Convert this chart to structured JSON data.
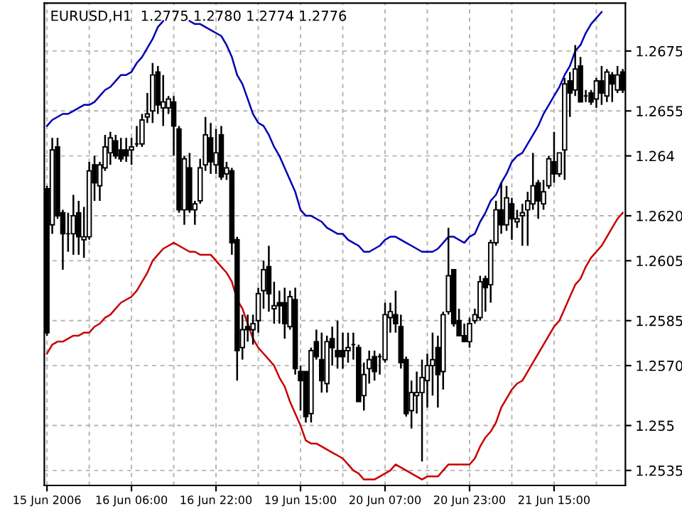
{
  "chart_data": {
    "type": "candlestick",
    "title": "EURUSD,H1  1.2775 1.2780 1.2774 1.2776",
    "categories": [
      "15 Jun 2006",
      null,
      null,
      null,
      null,
      null,
      null,
      null,
      null,
      null,
      null,
      null,
      null,
      null,
      null,
      null,
      "16 Jun 06:00",
      null,
      null,
      null,
      null,
      null,
      null,
      null,
      null,
      null,
      null,
      null,
      null,
      null,
      null,
      null,
      "16 Jun 22:00",
      null,
      null,
      null,
      null,
      null,
      null,
      null,
      null,
      null,
      null,
      null,
      null,
      null,
      null,
      null,
      "19 Jun 15:00",
      null,
      null,
      null,
      null,
      null,
      null,
      null,
      null,
      null,
      null,
      null,
      null,
      null,
      null,
      null,
      "20 Jun 07:00",
      null,
      null,
      null,
      null,
      null,
      null,
      null,
      null,
      null,
      null,
      null,
      null,
      null,
      null,
      null,
      "20 Jun 23:00",
      null,
      null,
      null,
      null,
      null,
      null,
      null,
      null,
      null,
      null,
      null,
      null,
      null,
      null,
      null,
      "21 Jun 15:00",
      null,
      null,
      null,
      null,
      null,
      null,
      null,
      null,
      null,
      null,
      null,
      null,
      null
    ],
    "ohlc": [
      [
        1.2629,
        1.263,
        1.258,
        1.2581
      ],
      [
        1.2617,
        1.2646,
        1.2614,
        1.2642
      ],
      [
        1.2643,
        1.2646,
        1.2619,
        1.262
      ],
      [
        1.2621,
        1.2622,
        1.2602,
        1.2614
      ],
      [
        1.2614,
        1.2621,
        1.2608,
        1.2614
      ],
      [
        1.2614,
        1.2627,
        1.2607,
        1.262
      ],
      [
        1.2621,
        1.2625,
        1.2607,
        1.2613
      ],
      [
        1.2612,
        1.2623,
        1.2606,
        1.2613
      ],
      [
        1.2613,
        1.2638,
        1.2612,
        1.2635
      ],
      [
        1.2637,
        1.264,
        1.2625,
        1.2631
      ],
      [
        1.263,
        1.2638,
        1.2625,
        1.2637
      ],
      [
        1.2636,
        1.2647,
        1.2635,
        1.2643
      ],
      [
        1.2641,
        1.2648,
        1.2637,
        1.2646
      ],
      [
        1.2645,
        1.2647,
        1.2639,
        1.264
      ],
      [
        1.2642,
        1.2646,
        1.2638,
        1.2639
      ],
      [
        1.2642,
        1.2646,
        1.2638,
        1.264
      ],
      [
        1.2642,
        1.2646,
        1.2637,
        1.2643
      ],
      [
        1.2644,
        1.265,
        1.2643,
        1.2644
      ],
      [
        1.2644,
        1.2654,
        1.2643,
        1.2652
      ],
      [
        1.2653,
        1.2661,
        1.2651,
        1.2654
      ],
      [
        1.2655,
        1.2671,
        1.2651,
        1.2667
      ],
      [
        1.2668,
        1.267,
        1.2654,
        1.2657
      ],
      [
        1.2656,
        1.2667,
        1.265,
        1.2658
      ],
      [
        1.2656,
        1.266,
        1.2654,
        1.2659
      ],
      [
        1.2658,
        1.266,
        1.264,
        1.265
      ],
      [
        1.2649,
        1.265,
        1.2621,
        1.2622
      ],
      [
        1.2622,
        1.264,
        1.2617,
        1.2639
      ],
      [
        1.2636,
        1.2641,
        1.2621,
        1.2622
      ],
      [
        1.2622,
        1.2625,
        1.2617,
        1.2624
      ],
      [
        1.2625,
        1.2639,
        1.2624,
        1.2636
      ],
      [
        1.2637,
        1.2653,
        1.2635,
        1.2647
      ],
      [
        1.2646,
        1.2651,
        1.2634,
        1.2638
      ],
      [
        1.2637,
        1.2649,
        1.2634,
        1.2641
      ],
      [
        1.2647,
        1.265,
        1.2632,
        1.2633
      ],
      [
        1.2634,
        1.2638,
        1.2632,
        1.2636
      ],
      [
        1.2635,
        1.2636,
        1.2607,
        1.2611
      ],
      [
        1.2612,
        1.2613,
        1.2565,
        1.2575
      ],
      [
        1.2576,
        1.2587,
        1.2572,
        1.2582
      ],
      [
        1.2583,
        1.2587,
        1.2578,
        1.2582
      ],
      [
        1.2582,
        1.2587,
        1.2577,
        1.2584
      ],
      [
        1.2585,
        1.2596,
        1.2581,
        1.2594
      ],
      [
        1.2595,
        1.2605,
        1.2589,
        1.2602
      ],
      [
        1.2603,
        1.261,
        1.2588,
        1.2594
      ],
      [
        1.2589,
        1.2598,
        1.2584,
        1.259
      ],
      [
        1.2591,
        1.2595,
        1.2584,
        1.259
      ],
      [
        1.2591,
        1.2596,
        1.2579,
        1.2584
      ],
      [
        1.2583,
        1.2595,
        1.2582,
        1.2593
      ],
      [
        1.2592,
        1.2596,
        1.2567,
        1.2569
      ],
      [
        1.2568,
        1.257,
        1.2555,
        1.2565
      ],
      [
        1.2568,
        1.2568,
        1.2551,
        1.2553
      ],
      [
        1.2554,
        1.2576,
        1.2551,
        1.2575
      ],
      [
        1.2578,
        1.2582,
        1.2572,
        1.2573
      ],
      [
        1.2572,
        1.2581,
        1.2561,
        1.2565
      ],
      [
        1.2564,
        1.258,
        1.2561,
        1.2578
      ],
      [
        1.2579,
        1.2583,
        1.257,
        1.2576
      ],
      [
        1.2575,
        1.2585,
        1.2569,
        1.2573
      ],
      [
        1.2575,
        1.2581,
        1.2569,
        1.2573
      ],
      [
        1.2575,
        1.2581,
        1.2571,
        1.2576
      ],
      [
        1.2577,
        1.2581,
        1.2572,
        1.2577
      ],
      [
        1.2576,
        1.2577,
        1.2558,
        1.2558
      ],
      [
        1.256,
        1.2571,
        1.2555,
        1.2567
      ],
      [
        1.2569,
        1.2575,
        1.2564,
        1.2572
      ],
      [
        1.2573,
        1.2575,
        1.2565,
        1.2568
      ],
      [
        1.2573,
        1.2574,
        1.2567,
        1.2573
      ],
      [
        1.2572,
        1.2591,
        1.2571,
        1.2587
      ],
      [
        1.2586,
        1.2591,
        1.2581,
        1.2588
      ],
      [
        1.2587,
        1.2595,
        1.2581,
        1.2584
      ],
      [
        1.2583,
        1.2587,
        1.2569,
        1.2571
      ],
      [
        1.2572,
        1.2573,
        1.2553,
        1.2554
      ],
      [
        1.2555,
        1.2565,
        1.2549,
        1.2561
      ],
      [
        1.256,
        1.2568,
        1.2554,
        1.2561
      ],
      [
        1.2561,
        1.2572,
        1.2538,
        1.2566
      ],
      [
        1.2565,
        1.2574,
        1.2556,
        1.257
      ],
      [
        1.257,
        1.2581,
        1.256,
        1.2572
      ],
      [
        1.2576,
        1.258,
        1.2556,
        1.2567
      ],
      [
        1.2568,
        1.2588,
        1.2562,
        1.2587
      ],
      [
        1.2588,
        1.2616,
        1.2587,
        1.26
      ],
      [
        1.2602,
        1.2602,
        1.2583,
        1.2584
      ],
      [
        1.2585,
        1.2589,
        1.258,
        1.258
      ],
      [
        1.258,
        1.2584,
        1.2578,
        1.2578
      ],
      [
        1.2578,
        1.2586,
        1.2576,
        1.2584
      ],
      [
        1.2585,
        1.2589,
        1.2584,
        1.2587
      ],
      [
        1.2586,
        1.26,
        1.2585,
        1.2598
      ],
      [
        1.2599,
        1.26,
        1.2588,
        1.2596
      ],
      [
        1.2597,
        1.2612,
        1.2591,
        1.2611
      ],
      [
        1.2611,
        1.2625,
        1.261,
        1.2622
      ],
      [
        1.2622,
        1.2631,
        1.2614,
        1.2617
      ],
      [
        1.2617,
        1.263,
        1.2615,
        1.2626
      ],
      [
        1.2624,
        1.2626,
        1.2612,
        1.2619
      ],
      [
        1.2618,
        1.2622,
        1.2616,
        1.2619
      ],
      [
        1.262,
        1.2624,
        1.261,
        1.2621
      ],
      [
        1.2622,
        1.2628,
        1.261,
        1.2625
      ],
      [
        1.2624,
        1.2641,
        1.2622,
        1.263
      ],
      [
        1.2631,
        1.2632,
        1.2619,
        1.2625
      ],
      [
        1.2624,
        1.2632,
        1.2622,
        1.2628
      ],
      [
        1.263,
        1.264,
        1.2629,
        1.2639
      ],
      [
        1.2638,
        1.2648,
        1.2631,
        1.2634
      ],
      [
        1.2634,
        1.2641,
        1.2633,
        1.2641
      ],
      [
        1.2642,
        1.2666,
        1.2632,
        1.2664
      ],
      [
        1.2665,
        1.2668,
        1.2653,
        1.2661
      ],
      [
        1.2662,
        1.2677,
        1.266,
        1.2669
      ],
      [
        1.267,
        1.2673,
        1.2658,
        1.2658
      ],
      [
        1.266,
        1.2662,
        1.2658,
        1.266
      ],
      [
        1.2661,
        1.2662,
        1.2657,
        1.2658
      ],
      [
        1.2659,
        1.2666,
        1.2656,
        1.2665
      ],
      [
        1.2665,
        1.267,
        1.2657,
        1.2661
      ],
      [
        1.266,
        1.2669,
        1.2658,
        1.2668
      ],
      [
        1.2667,
        1.2668,
        1.2658,
        1.2664
      ],
      [
        1.2662,
        1.267,
        1.2661,
        1.2667
      ],
      [
        1.2668,
        1.2669,
        1.2661,
        1.2662
      ]
    ],
    "series": [
      {
        "type": "line",
        "color": "#0000b4",
        "values": [
          1.265,
          1.2652,
          1.2653,
          1.2654,
          1.2654,
          1.2655,
          1.2656,
          1.2657,
          1.2657,
          1.2658,
          1.266,
          1.2662,
          1.2663,
          1.2665,
          1.2667,
          1.2667,
          1.2668,
          1.2671,
          1.2673,
          1.2676,
          1.2679,
          1.2683,
          1.2685,
          null,
          null,
          null,
          null,
          1.2685,
          1.2684,
          1.2684,
          1.2683,
          1.2682,
          1.2681,
          1.268,
          1.2677,
          1.2673,
          1.2667,
          1.2664,
          1.2659,
          1.2654,
          1.2651,
          1.265,
          1.2647,
          1.2643,
          1.264,
          1.2636,
          1.2632,
          1.2628,
          1.2622,
          1.262,
          1.262,
          1.2619,
          1.2618,
          1.2616,
          1.2615,
          1.2614,
          1.2614,
          1.2612,
          1.2611,
          1.261,
          1.2608,
          1.2608,
          1.2609,
          1.261,
          1.2612,
          1.2613,
          1.2613,
          1.2612,
          1.2611,
          1.261,
          1.2609,
          1.2608,
          1.2608,
          1.2608,
          1.2609,
          1.2611,
          1.2613,
          1.2613,
          1.2612,
          1.2611,
          1.2613,
          1.2614,
          1.2618,
          1.2621,
          1.2625,
          1.2627,
          1.2631,
          1.2634,
          1.2638,
          1.264,
          1.2641,
          1.2644,
          1.2647,
          1.265,
          1.2654,
          1.2657,
          1.266,
          1.2663,
          1.2667,
          1.267,
          1.2675,
          1.2677,
          1.2681,
          1.2684,
          1.2686,
          1.2688,
          null,
          null,
          null,
          null
        ]
      },
      {
        "type": "line",
        "color": "#c80000",
        "values": [
          1.2574,
          1.2577,
          1.2578,
          1.2578,
          1.2579,
          1.258,
          1.258,
          1.2581,
          1.2581,
          1.2583,
          1.2584,
          1.2586,
          1.2587,
          1.2589,
          1.2591,
          1.2592,
          1.2593,
          1.2595,
          1.2598,
          1.2601,
          1.2605,
          1.2607,
          1.2609,
          1.261,
          1.2611,
          1.261,
          1.2609,
          1.2608,
          1.2608,
          1.2607,
          1.2607,
          1.2607,
          1.2605,
          1.2603,
          1.2601,
          1.2598,
          1.2592,
          1.2589,
          1.2584,
          1.2579,
          1.2576,
          1.2574,
          1.2572,
          1.257,
          1.2566,
          1.2563,
          1.2558,
          1.2554,
          1.255,
          1.2545,
          1.2544,
          1.2544,
          1.2543,
          1.2542,
          1.2541,
          1.254,
          1.2539,
          1.2537,
          1.2535,
          1.2534,
          1.2532,
          1.2532,
          1.2532,
          1.2533,
          1.2534,
          1.2535,
          1.2537,
          1.2536,
          1.2535,
          1.2534,
          1.2533,
          1.2532,
          1.2533,
          1.2533,
          1.2533,
          1.2535,
          1.2537,
          1.2537,
          1.2537,
          1.2537,
          1.2537,
          1.2539,
          1.2543,
          1.2546,
          1.2548,
          1.2551,
          1.2556,
          1.2559,
          1.2562,
          1.2564,
          1.2565,
          1.2568,
          1.2571,
          1.2574,
          1.2577,
          1.258,
          1.2583,
          1.2585,
          1.2589,
          1.2593,
          1.2597,
          1.2599,
          1.2603,
          1.2606,
          1.2608,
          1.261,
          1.2613,
          1.2616,
          1.2619,
          1.2621
        ]
      }
    ],
    "ylim": [
      1.253,
      1.2691
    ],
    "yticks": [
      1.2535,
      1.255,
      {
        "value": 1.257,
        "label": "1.2570"
      },
      1.2585,
      1.2605,
      {
        "value": 1.262,
        "label": "1.2620"
      },
      1.264,
      1.2655,
      1.2675
    ],
    "grid": true
  }
}
